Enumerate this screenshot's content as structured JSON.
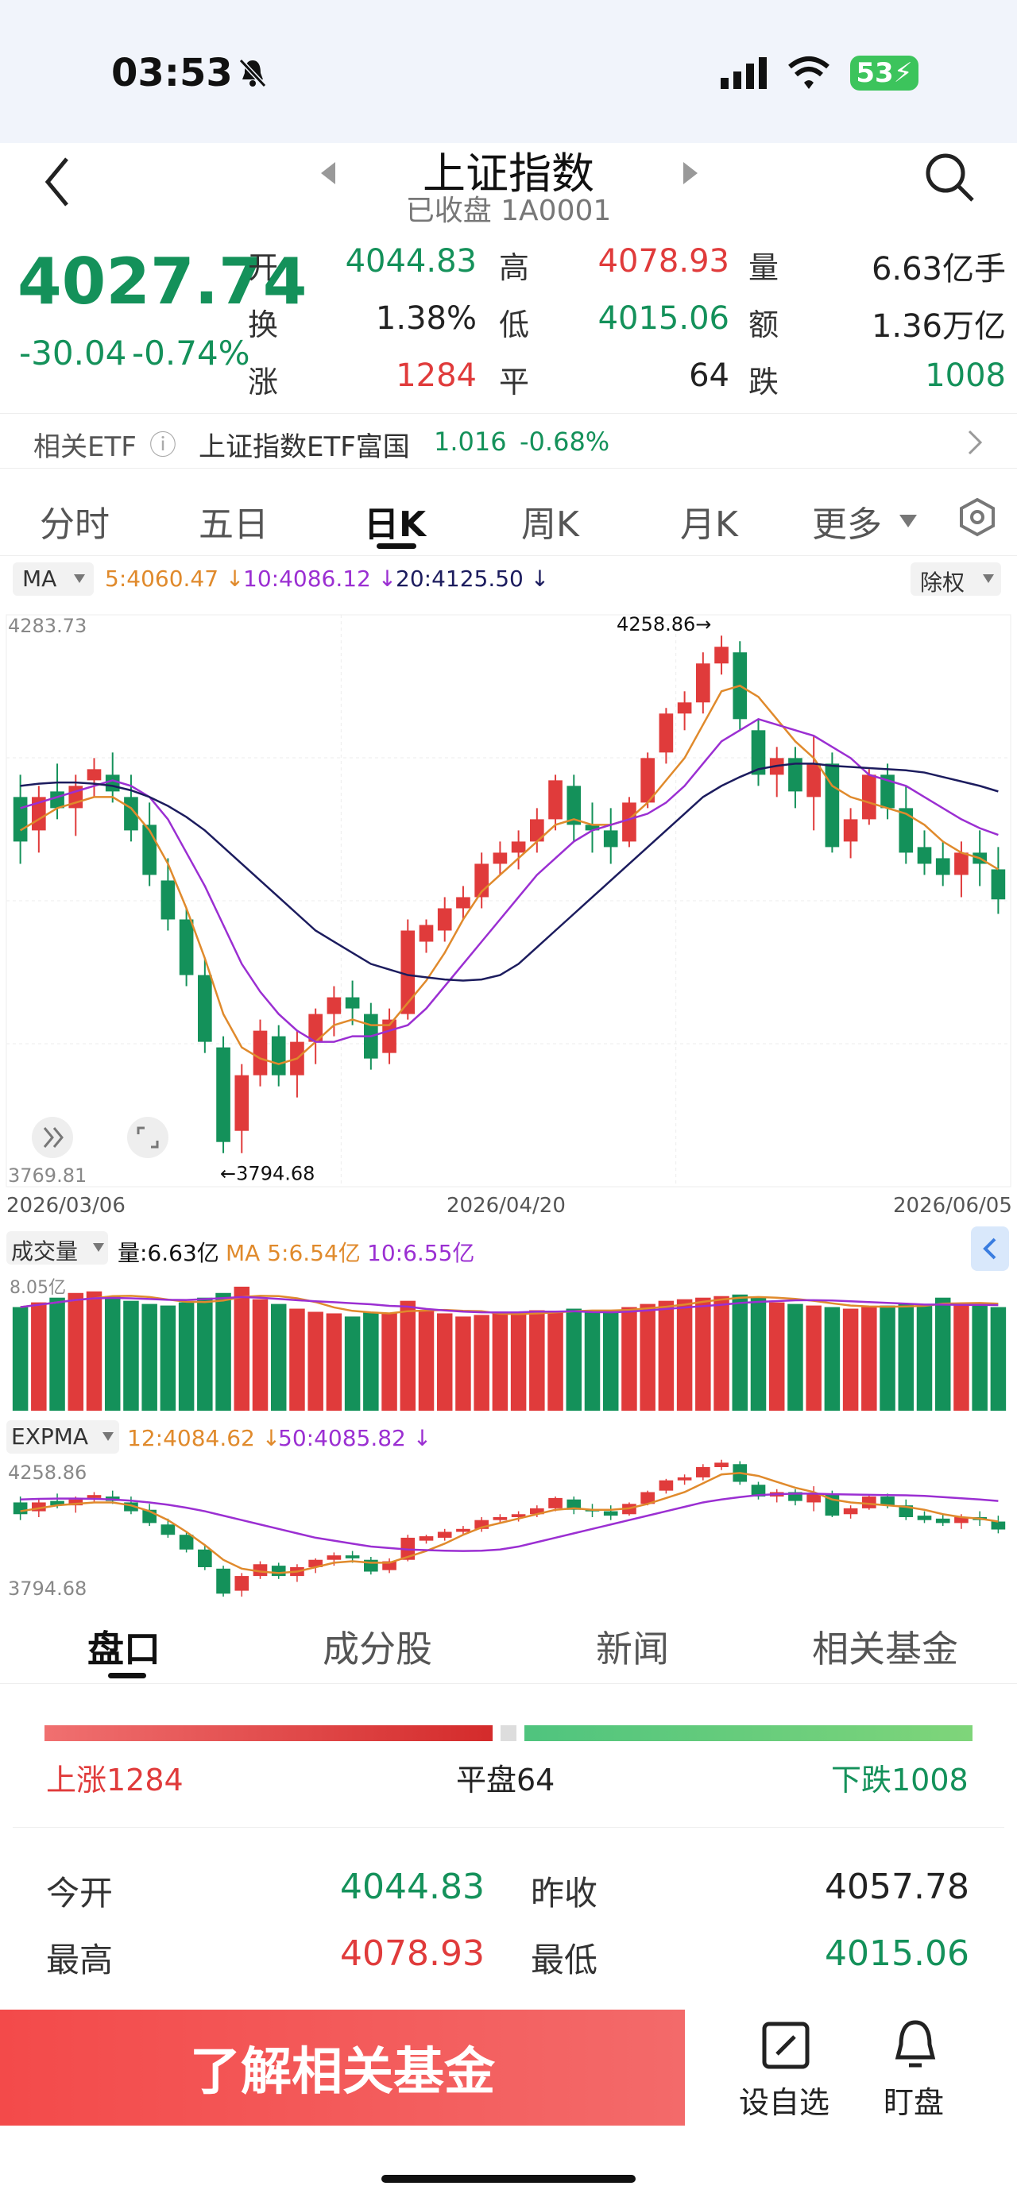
{
  "status_bar": {
    "time": "03:53",
    "battery": "53"
  },
  "header": {
    "title": "上证指数",
    "subtitle": "已收盘 1A0001"
  },
  "quote": {
    "price": "4027.74",
    "change": "-30.04",
    "change_pct": "-0.74%",
    "open_label": "开",
    "open": "4044.83",
    "high_label": "高",
    "high": "4078.93",
    "volume_label": "量",
    "volume": "6.63亿手",
    "turnover_label": "换",
    "turnover": "1.38%",
    "low_label": "低",
    "low": "4015.06",
    "amount_label": "额",
    "amount": "1.36万亿",
    "up_label": "涨",
    "up": "1284",
    "flat_label": "平",
    "flat": "64",
    "down_label": "跌",
    "down": "1008"
  },
  "etf": {
    "label": "相关ETF",
    "info_icon": "ⓘ",
    "name": "上证指数ETF富国",
    "price": "1.016",
    "change": "-0.68%"
  },
  "chart_tabs": [
    "分时",
    "五日",
    "日K",
    "周K",
    "月K",
    "更多"
  ],
  "ma_legend": {
    "label": "MA",
    "ma5": "5:4060.47 ↓",
    "ma10": "10:4086.12 ↓",
    "ma20": "20:4125.50 ↓",
    "adjust": "除权"
  },
  "chart_data": [
    {
      "type": "candlestick",
      "ylim": [
        3769.81,
        4283.73
      ],
      "y_top_label": "4283.73",
      "y_bottom_label": "3769.81",
      "x_ticks": [
        "2026/03/06",
        "2026/04/20",
        "2026/06/05"
      ],
      "annotations": [
        {
          "text": "4258.86→"
        },
        {
          "text": "←3794.68"
        }
      ],
      "candles": [
        [
          4120,
          4140,
          4060,
          4080,
          0
        ],
        [
          4090,
          4130,
          4070,
          4120,
          1
        ],
        [
          4125,
          4150,
          4100,
          4110,
          0
        ],
        [
          4110,
          4140,
          4085,
          4130,
          1
        ],
        [
          4135,
          4155,
          4120,
          4145,
          1
        ],
        [
          4140,
          4160,
          4115,
          4125,
          0
        ],
        [
          4120,
          4140,
          4080,
          4090,
          0
        ],
        [
          4095,
          4115,
          4040,
          4050,
          0
        ],
        [
          4045,
          4065,
          4000,
          4010,
          0
        ],
        [
          4010,
          4020,
          3950,
          3960,
          0
        ],
        [
          3960,
          3975,
          3890,
          3900,
          0
        ],
        [
          3895,
          3905,
          3800,
          3810,
          0
        ],
        [
          3820,
          3880,
          3800,
          3870,
          1
        ],
        [
          3870,
          3920,
          3860,
          3910,
          1
        ],
        [
          3905,
          3915,
          3860,
          3870,
          0
        ],
        [
          3870,
          3910,
          3850,
          3900,
          1
        ],
        [
          3900,
          3930,
          3880,
          3925,
          1
        ],
        [
          3925,
          3950,
          3905,
          3940,
          1
        ],
        [
          3940,
          3955,
          3915,
          3930,
          0
        ],
        [
          3925,
          3935,
          3875,
          3885,
          0
        ],
        [
          3890,
          3930,
          3880,
          3920,
          1
        ],
        [
          3925,
          4010,
          3920,
          4000,
          1
        ],
        [
          3990,
          4010,
          3980,
          4005,
          1
        ],
        [
          4000,
          4030,
          3990,
          4020,
          1
        ],
        [
          4020,
          4040,
          4010,
          4030,
          1
        ],
        [
          4030,
          4070,
          4020,
          4060,
          1
        ],
        [
          4060,
          4080,
          4050,
          4070,
          1
        ],
        [
          4070,
          4090,
          4055,
          4080,
          1
        ],
        [
          4080,
          4110,
          4070,
          4100,
          1
        ],
        [
          4100,
          4140,
          4090,
          4135,
          1
        ],
        [
          4130,
          4140,
          4080,
          4095,
          0
        ],
        [
          4095,
          4115,
          4070,
          4090,
          0
        ],
        [
          4090,
          4110,
          4060,
          4075,
          0
        ],
        [
          4080,
          4120,
          4075,
          4115,
          1
        ],
        [
          4115,
          4160,
          4110,
          4155,
          1
        ],
        [
          4160,
          4200,
          4150,
          4195,
          1
        ],
        [
          4195,
          4215,
          4180,
          4205,
          1
        ],
        [
          4205,
          4250,
          4195,
          4240,
          1
        ],
        [
          4240,
          4265,
          4230,
          4255,
          1
        ],
        [
          4250,
          4260,
          4180,
          4190,
          0
        ],
        [
          4180,
          4190,
          4130,
          4140,
          0
        ],
        [
          4140,
          4165,
          4120,
          4155,
          1
        ],
        [
          4155,
          4165,
          4110,
          4125,
          0
        ],
        [
          4120,
          4175,
          4090,
          4150,
          1
        ],
        [
          4150,
          4160,
          4070,
          4075,
          0
        ],
        [
          4080,
          4110,
          4065,
          4100,
          1
        ],
        [
          4100,
          4145,
          4095,
          4140,
          1
        ],
        [
          4140,
          4150,
          4100,
          4110,
          0
        ],
        [
          4110,
          4130,
          4060,
          4070,
          0
        ],
        [
          4075,
          4090,
          4050,
          4060,
          0
        ],
        [
          4065,
          4080,
          4040,
          4050,
          0
        ],
        [
          4050,
          4080,
          4030,
          4070,
          1
        ],
        [
          4070,
          4090,
          4040,
          4060,
          0
        ],
        [
          4055,
          4075,
          4015,
          4028,
          0
        ]
      ],
      "ma": [
        {
          "name": "MA5",
          "color": "#e08a2c",
          "values": [
            4090,
            4100,
            4110,
            4115,
            4120,
            4120,
            4110,
            4090,
            4060,
            4020,
            3975,
            3925,
            3895,
            3885,
            3880,
            3885,
            3900,
            3915,
            3920,
            3915,
            3915,
            3935,
            3955,
            3980,
            4010,
            4035,
            4050,
            4065,
            4080,
            4095,
            4100,
            4095,
            4095,
            4100,
            4115,
            4135,
            4155,
            4185,
            4215,
            4220,
            4210,
            4190,
            4170,
            4155,
            4130,
            4120,
            4115,
            4110,
            4105,
            4095,
            4080,
            4070,
            4065,
            4055
          ]
        },
        {
          "name": "MA10",
          "color": "#9b2fd2",
          "values": [
            4110,
            4115,
            4120,
            4125,
            4130,
            4135,
            4130,
            4120,
            4100,
            4070,
            4040,
            4005,
            3970,
            3945,
            3925,
            3910,
            3900,
            3900,
            3905,
            3905,
            3910,
            3915,
            3930,
            3950,
            3970,
            3990,
            4010,
            4030,
            4050,
            4065,
            4080,
            4090,
            4095,
            4100,
            4105,
            4115,
            4130,
            4150,
            4170,
            4180,
            4190,
            4185,
            4180,
            4175,
            4165,
            4155,
            4140,
            4135,
            4130,
            4120,
            4110,
            4100,
            4092,
            4086
          ]
        },
        {
          "name": "MA20",
          "color": "#1c1c5e",
          "values": [
            4130,
            4132,
            4133,
            4133,
            4132,
            4130,
            4126,
            4120,
            4112,
            4102,
            4090,
            4075,
            4060,
            4045,
            4030,
            4015,
            4000,
            3990,
            3980,
            3970,
            3965,
            3960,
            3958,
            3956,
            3955,
            3956,
            3960,
            3970,
            3985,
            4000,
            4015,
            4030,
            4045,
            4060,
            4075,
            4090,
            4105,
            4120,
            4130,
            4138,
            4145,
            4148,
            4150,
            4150,
            4148,
            4147,
            4146,
            4145,
            4144,
            4142,
            4138,
            4134,
            4130,
            4125
          ]
        }
      ]
    },
    {
      "type": "bar",
      "legend": {
        "label": "成交量",
        "vol": "量:6.63亿",
        "ma5": "MA 5:6.54亿",
        "ma10": "10:6.55亿"
      },
      "y_label": "8.05亿",
      "ylim": [
        0,
        8.5
      ],
      "values": [
        6.6,
        6.9,
        7.2,
        7.5,
        7.6,
        7.3,
        7.0,
        6.8,
        6.7,
        6.9,
        7.2,
        7.5,
        7.9,
        7.1,
        6.8,
        6.5,
        6.3,
        6.2,
        6.0,
        6.3,
        6.2,
        7.0,
        6.4,
        6.2,
        6.0,
        6.1,
        6.2,
        6.3,
        6.4,
        6.3,
        6.5,
        6.4,
        6.3,
        6.6,
        6.8,
        7.0,
        7.1,
        7.2,
        7.3,
        7.4,
        7.2,
        6.9,
        6.8,
        6.7,
        6.6,
        6.5,
        6.6,
        6.7,
        6.8,
        6.8,
        7.2,
        6.7,
        6.8,
        6.6
      ]
    },
    {
      "type": "candlestick-mini",
      "legend": {
        "label": "EXPMA",
        "e12": "12:4084.62 ↓",
        "e50": "50:4085.82 ↓"
      },
      "y_top_label": "4258.86",
      "y_bottom_label": "3794.68",
      "ylim": [
        3794.68,
        4258.86
      ]
    }
  ],
  "detail_tabs": [
    "盘口",
    "成分股",
    "新闻",
    "相关基金"
  ],
  "breadth": {
    "up": "上涨1284",
    "flat": "平盘64",
    "down": "下跌1008",
    "up_ratio": 0.5
  },
  "detail": {
    "open_label": "今开",
    "open": "4044.83",
    "prev_label": "昨收",
    "prev": "4057.78",
    "high_label": "最高",
    "high": "4078.93",
    "low_label": "最低",
    "low": "4015.06"
  },
  "bottom": {
    "cta": "了解相关基金",
    "watch_label": "设自选",
    "alert_label": "盯盘"
  }
}
